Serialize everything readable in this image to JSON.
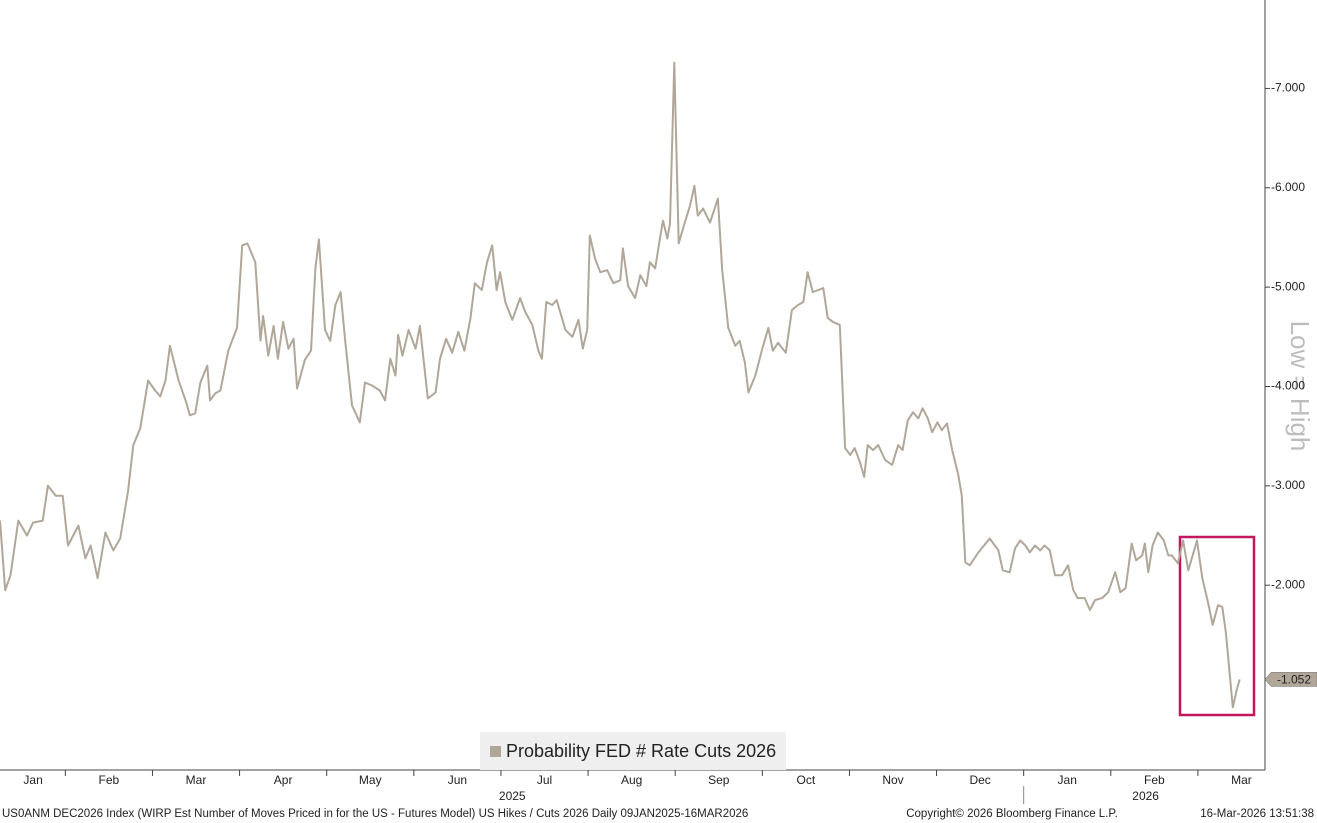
{
  "chart_data": {
    "type": "line",
    "series": [
      {
        "name": "Probability FED # Rate Cuts 2026",
        "color": "#b0a799",
        "x": [
          0.25,
          0.31,
          0.37,
          0.46,
          0.56,
          0.63,
          0.74,
          0.8,
          0.89,
          0.97,
          1.03,
          1.15,
          1.23,
          1.29,
          1.37,
          1.46,
          1.55,
          1.63,
          1.72,
          1.78,
          1.86,
          1.95,
          2.03,
          2.09,
          2.15,
          2.2,
          2.3,
          2.38,
          2.43,
          2.49,
          2.55,
          2.63,
          2.66,
          2.72,
          2.78,
          2.87,
          2.97,
          3.03,
          3.09,
          3.18,
          3.24,
          3.27,
          3.33,
          3.39,
          3.44,
          3.5,
          3.56,
          3.62,
          3.66,
          3.75,
          3.82,
          3.87,
          3.91,
          3.98,
          4.04,
          4.1,
          4.16,
          4.21,
          4.29,
          4.38,
          4.44,
          4.52,
          4.61,
          4.67,
          4.73,
          4.79,
          4.82,
          4.87,
          4.94,
          5.02,
          5.07,
          5.16,
          5.25,
          5.3,
          5.37,
          5.44,
          5.51,
          5.58,
          5.65,
          5.7,
          5.78,
          5.84,
          5.9,
          5.95,
          5.99,
          6.05,
          6.13,
          6.22,
          6.28,
          6.36,
          6.43,
          6.47,
          6.52,
          6.59,
          6.64,
          6.74,
          6.82,
          6.89,
          6.94,
          6.99,
          7.02,
          7.08,
          7.14,
          7.22,
          7.29,
          7.37,
          7.4,
          7.46,
          7.54,
          7.6,
          7.67,
          7.71,
          7.77,
          7.83,
          7.86,
          7.91,
          7.94,
          7.99,
          8.04,
          8.11,
          8.17,
          8.22,
          8.26,
          8.32,
          8.4,
          8.49,
          8.54,
          8.61,
          8.69,
          8.74,
          8.8,
          8.84,
          8.92,
          9.0,
          9.07,
          9.12,
          9.18,
          9.27,
          9.34,
          9.41,
          9.47,
          9.52,
          9.58,
          9.64,
          9.7,
          9.75,
          9.81,
          9.89,
          9.95,
          10.01,
          10.06,
          10.12,
          10.17,
          10.21,
          10.27,
          10.33,
          10.41,
          10.49,
          10.56,
          10.61,
          10.67,
          10.73,
          10.79,
          10.84,
          10.9,
          10.95,
          11.01,
          11.06,
          11.12,
          11.18,
          11.25,
          11.29,
          11.33,
          11.38,
          11.48,
          11.61,
          11.71,
          11.76,
          11.84,
          11.9,
          11.96,
          12.02,
          12.07,
          12.13,
          12.19,
          12.24,
          12.3,
          12.36,
          12.44,
          12.51,
          12.57,
          12.62,
          12.7,
          12.76,
          12.82,
          12.9,
          12.97,
          13.05,
          13.11,
          13.17,
          13.24,
          13.29,
          13.36,
          13.39,
          13.43,
          13.48,
          13.54,
          13.61,
          13.66,
          13.7,
          13.77,
          13.83,
          13.89,
          13.99,
          14.05,
          14.11,
          14.17,
          14.23,
          14.28,
          14.32,
          14.4,
          14.45,
          14.48
        ],
        "values": [
          -2.65,
          -1.95,
          -2.1,
          -2.65,
          -2.5,
          -2.63,
          -2.65,
          -3.0,
          -2.9,
          -2.9,
          -2.4,
          -2.6,
          -2.27,
          -2.4,
          -2.07,
          -2.53,
          -2.35,
          -2.47,
          -2.95,
          -3.41,
          -3.58,
          -4.06,
          -3.96,
          -3.9,
          -4.06,
          -4.41,
          -4.06,
          -3.86,
          -3.71,
          -3.73,
          -4.04,
          -4.21,
          -3.86,
          -3.93,
          -3.96,
          -4.36,
          -4.59,
          -5.42,
          -5.44,
          -5.25,
          -4.46,
          -4.71,
          -4.31,
          -4.61,
          -4.28,
          -4.65,
          -4.38,
          -4.48,
          -3.98,
          -4.27,
          -4.36,
          -5.19,
          -5.48,
          -4.57,
          -4.46,
          -4.82,
          -4.95,
          -4.48,
          -3.81,
          -3.64,
          -4.04,
          -4.01,
          -3.96,
          -3.86,
          -4.28,
          -4.11,
          -4.52,
          -4.31,
          -4.57,
          -4.38,
          -4.61,
          -3.88,
          -3.94,
          -4.28,
          -4.48,
          -4.34,
          -4.55,
          -4.36,
          -4.69,
          -5.04,
          -4.97,
          -5.25,
          -5.42,
          -4.97,
          -5.15,
          -4.85,
          -4.67,
          -4.89,
          -4.75,
          -4.62,
          -4.36,
          -4.28,
          -4.85,
          -4.82,
          -4.87,
          -4.57,
          -4.5,
          -4.67,
          -4.38,
          -4.57,
          -5.52,
          -5.29,
          -5.15,
          -5.17,
          -5.04,
          -5.07,
          -5.39,
          -5.01,
          -4.89,
          -5.12,
          -5.01,
          -5.25,
          -5.19,
          -5.52,
          -5.67,
          -5.49,
          -5.64,
          -7.26,
          -5.44,
          -5.65,
          -5.82,
          -6.02,
          -5.72,
          -5.79,
          -5.65,
          -5.89,
          -5.17,
          -4.59,
          -4.41,
          -4.46,
          -4.24,
          -3.94,
          -4.11,
          -4.38,
          -4.59,
          -4.36,
          -4.44,
          -4.34,
          -4.77,
          -4.82,
          -4.85,
          -5.15,
          -4.95,
          -4.97,
          -4.99,
          -4.69,
          -4.65,
          -4.62,
          -3.38,
          -3.31,
          -3.38,
          -3.24,
          -3.09,
          -3.41,
          -3.36,
          -3.41,
          -3.26,
          -3.21,
          -3.41,
          -3.36,
          -3.66,
          -3.74,
          -3.68,
          -3.78,
          -3.68,
          -3.54,
          -3.64,
          -3.56,
          -3.63,
          -3.36,
          -3.11,
          -2.9,
          -2.23,
          -2.2,
          -2.33,
          -2.47,
          -2.35,
          -2.15,
          -2.13,
          -2.37,
          -2.45,
          -2.4,
          -2.33,
          -2.4,
          -2.35,
          -2.4,
          -2.35,
          -2.1,
          -2.1,
          -2.2,
          -1.95,
          -1.87,
          -1.87,
          -1.75,
          -1.85,
          -1.87,
          -1.93,
          -2.13,
          -1.93,
          -1.97,
          -2.42,
          -2.25,
          -2.3,
          -2.42,
          -2.13,
          -2.4,
          -2.53,
          -2.45,
          -2.3,
          -2.3,
          -2.22,
          -2.45,
          -2.15,
          -2.45,
          -2.07,
          -1.85,
          -1.6,
          -1.8,
          -1.78,
          -1.53,
          -0.77,
          -0.96,
          -1.052
        ]
      }
    ],
    "last_value_label": "-1.052",
    "xlim": [
      0.25,
      14.77
    ],
    "ylim": [
      -0.14,
      -7.89
    ],
    "yticks": [
      {
        "value": -7,
        "label": "-7.000"
      },
      {
        "value": -6,
        "label": "-6.000"
      },
      {
        "value": -5,
        "label": "-5.000"
      },
      {
        "value": -4,
        "label": "-4.000"
      },
      {
        "value": -3,
        "label": "-3.000"
      },
      {
        "value": -2,
        "label": "-2.000"
      }
    ],
    "xticks": [
      1,
      2,
      3,
      4,
      5,
      6,
      7,
      8,
      9,
      10,
      11,
      12,
      13,
      14
    ],
    "month_labels": [
      {
        "value": 0.63,
        "label": "Jan"
      },
      {
        "value": 1.5,
        "label": "Feb"
      },
      {
        "value": 2.5,
        "label": "Mar"
      },
      {
        "value": 3.5,
        "label": "Apr"
      },
      {
        "value": 4.5,
        "label": "May"
      },
      {
        "value": 5.5,
        "label": "Jun"
      },
      {
        "value": 6.5,
        "label": "Jul"
      },
      {
        "value": 7.5,
        "label": "Aug"
      },
      {
        "value": 8.5,
        "label": "Sep"
      },
      {
        "value": 9.5,
        "label": "Oct"
      },
      {
        "value": 10.5,
        "label": "Nov"
      },
      {
        "value": 11.5,
        "label": "Dec"
      },
      {
        "value": 12.5,
        "label": "Jan"
      },
      {
        "value": 13.5,
        "label": "Feb"
      },
      {
        "value": 14.5,
        "label": "Mar"
      }
    ],
    "year_labels": [
      {
        "value": 6.13,
        "label": "2025"
      },
      {
        "value": 13.4,
        "label": "2026"
      }
    ],
    "year_ticks": [
      12
    ],
    "axis_note": "Low = High",
    "legend": "bottom-center",
    "footer": {
      "description": "US0ANM DEC2026 Index (WIRP Est Number of Moves Priced in for the US - Futures Model) US Hikes / Cuts 2026 Daily 09JAN2025-16MAR2026",
      "copyright": "Copyright© 2026 Bloomberg Finance L.P.",
      "timestamp": "16-Mar-2026 13:51:38"
    }
  }
}
